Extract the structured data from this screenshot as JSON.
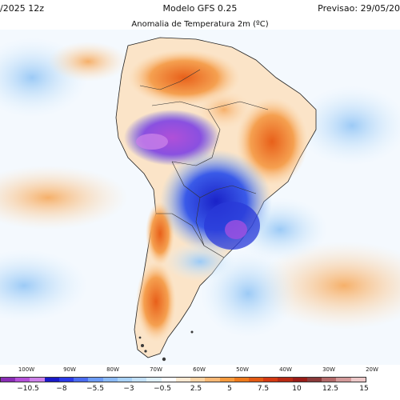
{
  "header": {
    "left": "/2025 12z",
    "center": "Modelo GFS 0.25",
    "right": "Previsao: 29/05/20"
  },
  "map": {
    "title": "Anomalia de Temperatura 2m (ºC)",
    "region": "South America",
    "longitude_ticks": [
      "100W",
      "90W",
      "80W",
      "70W",
      "60W",
      "50W",
      "40W",
      "30W",
      "20W"
    ]
  },
  "colorbar": {
    "labels": [
      "−10.5",
      "−8",
      "−5.5",
      "−3",
      "−0.5",
      "2.5",
      "5",
      "7.5",
      "10",
      "12.5",
      "15"
    ],
    "colors": [
      "#8a2db5",
      "#b450d8",
      "#cc80e8",
      "#1a1ac8",
      "#2a3ae8",
      "#4b6cf0",
      "#6d9cf5",
      "#8cbaf6",
      "#a9d2f8",
      "#c4e1fa",
      "#dff0fc",
      "#ffffff",
      "#fde9d2",
      "#fbd3a4",
      "#f9b876",
      "#f59a3d",
      "#ee7a1c",
      "#e35a14",
      "#d43a12",
      "#b82a14",
      "#9a1c18",
      "#8a3a3a",
      "#b46a6a",
      "#d39a9a",
      "#ecc8c8"
    ]
  }
}
